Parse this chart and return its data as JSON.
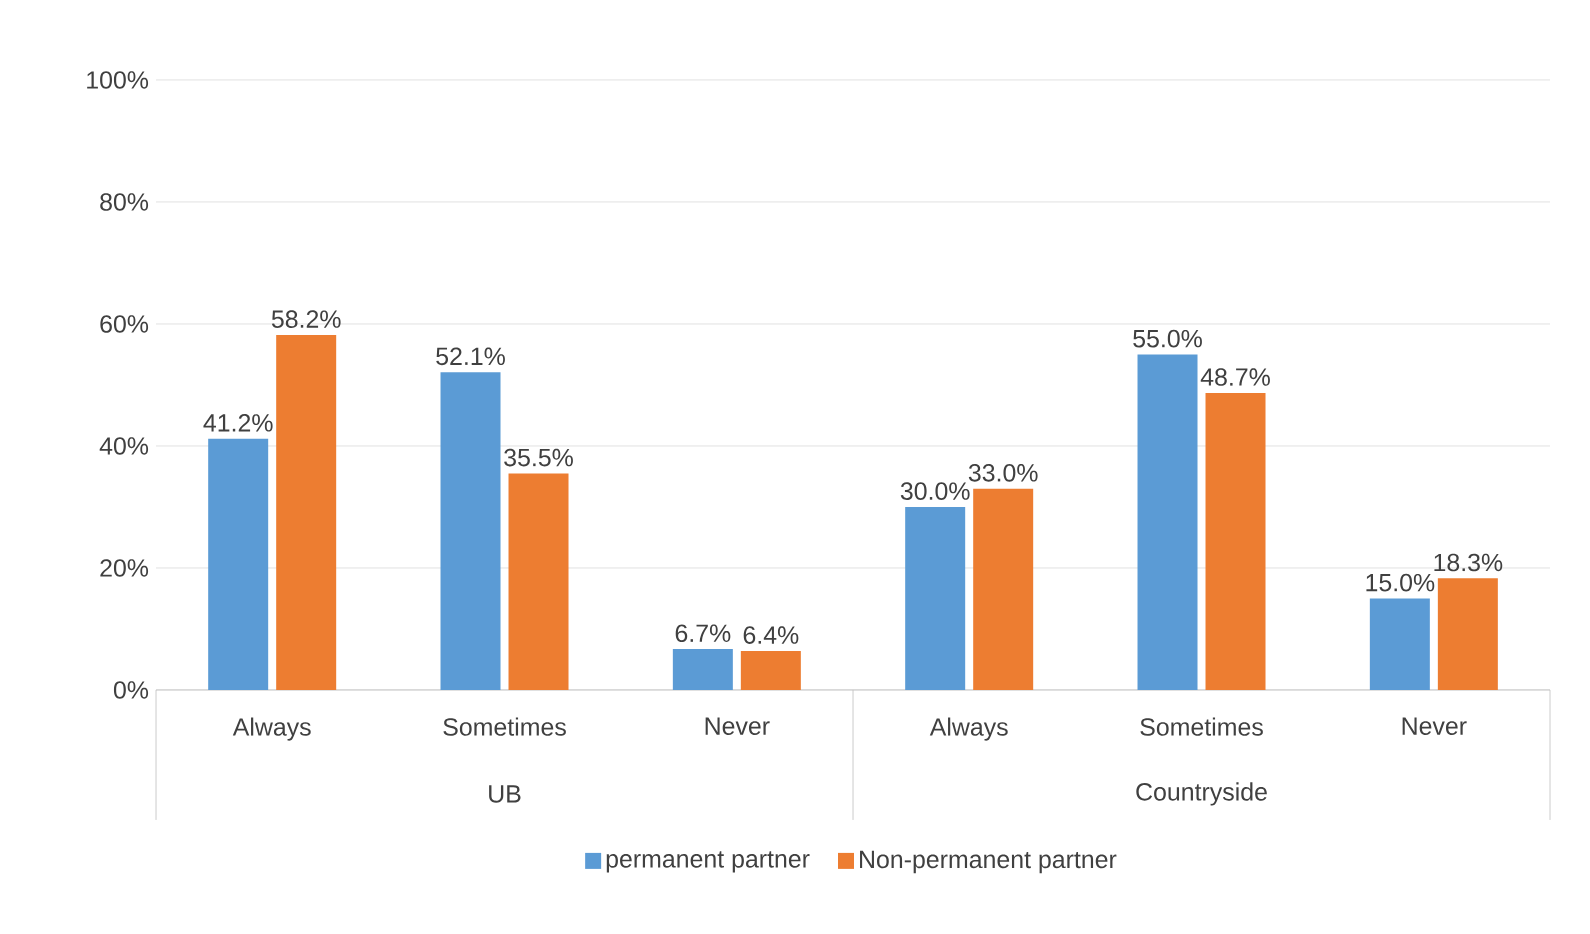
{
  "chart_data": {
    "type": "bar",
    "categories": [
      "Always",
      "Sometimes",
      "Never",
      "Always",
      "Sometimes",
      "Never"
    ],
    "series": [
      {
        "name": "permanent partner",
        "color": "#5b9bd5",
        "values": [
          41.2,
          52.1,
          6.7,
          30.0,
          55.0,
          15.0
        ],
        "value_labels": [
          "41.2%",
          "52.1%",
          "6.7%",
          "30.0%",
          "55.0%",
          "15.0%"
        ]
      },
      {
        "name": "Non-permanent partner",
        "color": "#ed7d31",
        "values": [
          58.2,
          35.5,
          6.4,
          33.0,
          48.7,
          18.3
        ],
        "value_labels": [
          "58.2%",
          "35.5%",
          "6.4%",
          "33.0%",
          "48.7%",
          "18.3%"
        ]
      }
    ],
    "annotations": [
      "UB",
      "Countryside"
    ],
    "ylim": [
      0,
      100
    ],
    "yticks": [
      {
        "value": 0,
        "label": "0%"
      },
      {
        "value": 20,
        "label": "20%"
      },
      {
        "value": 40,
        "label": "40%"
      },
      {
        "value": 60,
        "label": "60%"
      },
      {
        "value": 80,
        "label": "80%"
      },
      {
        "value": 100,
        "label": "100%"
      }
    ],
    "grid": "y",
    "legend": "bottom"
  }
}
